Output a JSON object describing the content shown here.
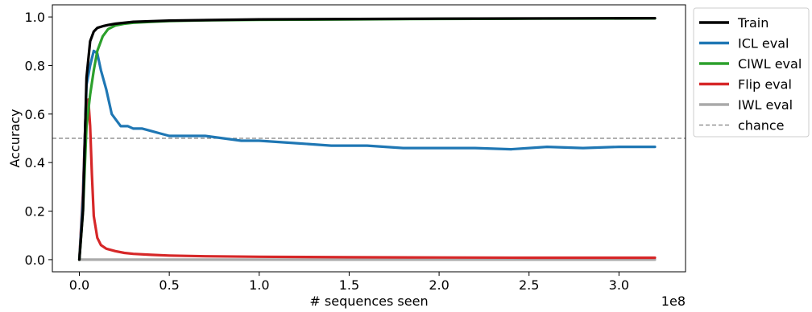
{
  "chart_data": {
    "type": "line",
    "title": "",
    "xlabel": "# sequences seen",
    "ylabel": "Accuracy",
    "x_offset_text": "1e8",
    "xlim": [
      -0.15,
      3.37
    ],
    "ylim": [
      -0.05,
      1.05
    ],
    "x_ticks": [
      0.0,
      0.5,
      1.0,
      1.5,
      2.0,
      2.5,
      3.0
    ],
    "x_tick_labels": [
      "0.0",
      "0.5",
      "1.0",
      "1.5",
      "2.0",
      "2.5",
      "3.0"
    ],
    "y_ticks": [
      0.0,
      0.2,
      0.4,
      0.6,
      0.8,
      1.0
    ],
    "y_tick_labels": [
      "0.0",
      "0.2",
      "0.4",
      "0.6",
      "0.8",
      "1.0"
    ],
    "grid": false,
    "legend_position": "outside-right-top",
    "reference_line": {
      "name": "chance",
      "y": 0.5,
      "color": "#808080",
      "style": "dashed"
    },
    "series": [
      {
        "name": "Train",
        "color": "#000000",
        "x": [
          0.0,
          0.02,
          0.04,
          0.06,
          0.08,
          0.1,
          0.13,
          0.16,
          0.2,
          0.3,
          0.5,
          1.0,
          2.0,
          3.2
        ],
        "y": [
          0.0,
          0.2,
          0.75,
          0.9,
          0.94,
          0.955,
          0.962,
          0.967,
          0.972,
          0.98,
          0.985,
          0.99,
          0.993,
          0.995
        ]
      },
      {
        "name": "ICL eval",
        "color": "#1f77b4",
        "x": [
          0.0,
          0.02,
          0.04,
          0.06,
          0.08,
          0.1,
          0.12,
          0.15,
          0.18,
          0.2,
          0.23,
          0.27,
          0.3,
          0.35,
          0.4,
          0.45,
          0.5,
          0.6,
          0.7,
          0.8,
          0.9,
          1.0,
          1.2,
          1.4,
          1.5,
          1.6,
          1.8,
          2.0,
          2.2,
          2.4,
          2.5,
          2.6,
          2.8,
          3.0,
          3.2
        ],
        "y": [
          0.0,
          0.25,
          0.72,
          0.8,
          0.86,
          0.85,
          0.78,
          0.7,
          0.6,
          0.58,
          0.55,
          0.55,
          0.54,
          0.54,
          0.53,
          0.52,
          0.51,
          0.51,
          0.51,
          0.5,
          0.49,
          0.49,
          0.48,
          0.47,
          0.47,
          0.47,
          0.46,
          0.46,
          0.46,
          0.455,
          0.46,
          0.465,
          0.46,
          0.465,
          0.465
        ]
      },
      {
        "name": "CIWL eval",
        "color": "#2ca02c",
        "x": [
          0.0,
          0.02,
          0.04,
          0.06,
          0.08,
          0.1,
          0.13,
          0.16,
          0.2,
          0.25,
          0.3,
          0.4,
          0.5,
          0.7,
          1.0,
          1.5,
          2.0,
          2.5,
          3.2
        ],
        "y": [
          0.0,
          0.2,
          0.55,
          0.68,
          0.78,
          0.86,
          0.92,
          0.95,
          0.965,
          0.972,
          0.976,
          0.98,
          0.983,
          0.986,
          0.988,
          0.99,
          0.992,
          0.993,
          0.994
        ]
      },
      {
        "name": "Flip eval",
        "color": "#d62728",
        "x": [
          0.0,
          0.02,
          0.035,
          0.05,
          0.06,
          0.07,
          0.08,
          0.1,
          0.12,
          0.15,
          0.2,
          0.25,
          0.3,
          0.4,
          0.5,
          0.7,
          1.0,
          1.5,
          2.0,
          2.5,
          3.2
        ],
        "y": [
          0.0,
          0.28,
          0.6,
          0.66,
          0.55,
          0.35,
          0.18,
          0.09,
          0.06,
          0.045,
          0.035,
          0.028,
          0.024,
          0.02,
          0.017,
          0.014,
          0.012,
          0.01,
          0.009,
          0.008,
          0.008
        ]
      },
      {
        "name": "IWL eval",
        "color": "#aaaaaa",
        "x": [
          0.0,
          3.2
        ],
        "y": [
          0.0,
          0.0
        ]
      }
    ]
  }
}
